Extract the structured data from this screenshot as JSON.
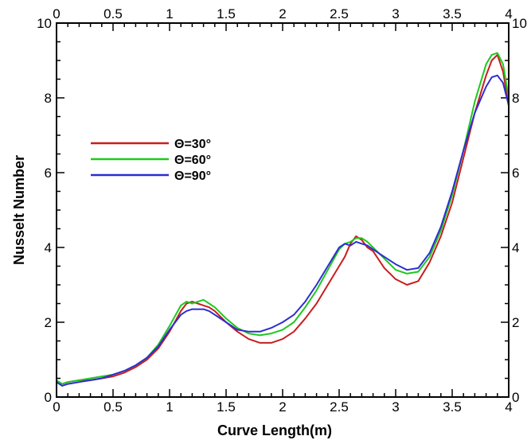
{
  "chart_data": {
    "type": "line",
    "title": "",
    "xlabel": "Curve Length(m)",
    "ylabel": "Nusselt Number",
    "xlim": [
      0,
      4
    ],
    "ylim": [
      0,
      10
    ],
    "xticks": [
      0,
      0.5,
      1,
      1.5,
      2,
      2.5,
      3,
      3.5,
      4
    ],
    "xtick_labels": [
      "0",
      "0.5",
      "1",
      "1.5",
      "2",
      "2.5",
      "3",
      "3.5",
      "4"
    ],
    "yticks": [
      0,
      2,
      4,
      6,
      8,
      10
    ],
    "ytick_labels": [
      "0",
      "2",
      "4",
      "6",
      "8",
      "10"
    ],
    "mirrored_axes": true,
    "grid": false,
    "legend_position": "left-middle",
    "series": [
      {
        "name": "Θ=30°",
        "color": "#c81e1e",
        "x": [
          0,
          0.05,
          0.1,
          0.2,
          0.3,
          0.4,
          0.5,
          0.6,
          0.7,
          0.8,
          0.9,
          1.0,
          1.1,
          1.15,
          1.2,
          1.25,
          1.3,
          1.35,
          1.4,
          1.5,
          1.6,
          1.7,
          1.8,
          1.9,
          2.0,
          2.1,
          2.2,
          2.3,
          2.4,
          2.5,
          2.55,
          2.6,
          2.65,
          2.7,
          2.75,
          2.8,
          2.9,
          3.0,
          3.1,
          3.2,
          3.3,
          3.4,
          3.5,
          3.6,
          3.7,
          3.8,
          3.85,
          3.9,
          3.95,
          4.0
        ],
        "y": [
          0.4,
          0.35,
          0.4,
          0.45,
          0.45,
          0.5,
          0.55,
          0.65,
          0.8,
          1.0,
          1.3,
          1.75,
          2.3,
          2.5,
          2.55,
          2.5,
          2.45,
          2.4,
          2.3,
          2.0,
          1.75,
          1.55,
          1.45,
          1.45,
          1.55,
          1.75,
          2.1,
          2.5,
          3.0,
          3.5,
          3.75,
          4.1,
          4.3,
          4.2,
          4.0,
          3.9,
          3.45,
          3.15,
          3.0,
          3.1,
          3.6,
          4.3,
          5.2,
          6.4,
          7.6,
          8.6,
          9.0,
          9.15,
          8.7,
          7.8
        ]
      },
      {
        "name": "Θ=60°",
        "color": "#1ec81e",
        "x": [
          0,
          0.05,
          0.1,
          0.2,
          0.3,
          0.4,
          0.5,
          0.6,
          0.7,
          0.8,
          0.9,
          1.0,
          1.1,
          1.15,
          1.2,
          1.25,
          1.3,
          1.35,
          1.4,
          1.5,
          1.6,
          1.7,
          1.8,
          1.9,
          2.0,
          2.1,
          2.2,
          2.3,
          2.4,
          2.5,
          2.55,
          2.6,
          2.65,
          2.7,
          2.75,
          2.8,
          2.9,
          3.0,
          3.1,
          3.2,
          3.3,
          3.4,
          3.5,
          3.6,
          3.7,
          3.8,
          3.85,
          3.9,
          3.95,
          4.0
        ],
        "y": [
          0.45,
          0.35,
          0.4,
          0.45,
          0.5,
          0.55,
          0.6,
          0.7,
          0.85,
          1.05,
          1.4,
          1.9,
          2.45,
          2.55,
          2.5,
          2.55,
          2.6,
          2.5,
          2.4,
          2.1,
          1.85,
          1.7,
          1.65,
          1.7,
          1.8,
          2.0,
          2.4,
          2.85,
          3.4,
          3.95,
          4.1,
          4.15,
          4.25,
          4.25,
          4.15,
          4.0,
          3.7,
          3.4,
          3.3,
          3.35,
          3.75,
          4.45,
          5.4,
          6.6,
          7.9,
          8.9,
          9.15,
          9.2,
          8.9,
          8.0
        ]
      },
      {
        "name": "Θ=90°",
        "color": "#2d2dd2",
        "x": [
          0,
          0.05,
          0.1,
          0.2,
          0.3,
          0.4,
          0.5,
          0.6,
          0.7,
          0.8,
          0.9,
          1.0,
          1.1,
          1.15,
          1.2,
          1.25,
          1.3,
          1.35,
          1.4,
          1.5,
          1.6,
          1.7,
          1.8,
          1.9,
          2.0,
          2.1,
          2.2,
          2.3,
          2.4,
          2.5,
          2.55,
          2.6,
          2.65,
          2.7,
          2.75,
          2.8,
          2.9,
          3.0,
          3.1,
          3.2,
          3.3,
          3.4,
          3.5,
          3.6,
          3.7,
          3.8,
          3.85,
          3.9,
          3.95,
          4.0
        ],
        "y": [
          0.4,
          0.3,
          0.35,
          0.4,
          0.45,
          0.5,
          0.6,
          0.7,
          0.85,
          1.05,
          1.35,
          1.8,
          2.2,
          2.3,
          2.35,
          2.35,
          2.35,
          2.3,
          2.2,
          2.0,
          1.8,
          1.75,
          1.75,
          1.85,
          2.0,
          2.2,
          2.55,
          3.0,
          3.5,
          4.0,
          4.1,
          4.05,
          4.15,
          4.1,
          4.05,
          3.95,
          3.75,
          3.55,
          3.4,
          3.45,
          3.85,
          4.55,
          5.5,
          6.6,
          7.6,
          8.3,
          8.55,
          8.6,
          8.4,
          7.8
        ]
      }
    ]
  }
}
